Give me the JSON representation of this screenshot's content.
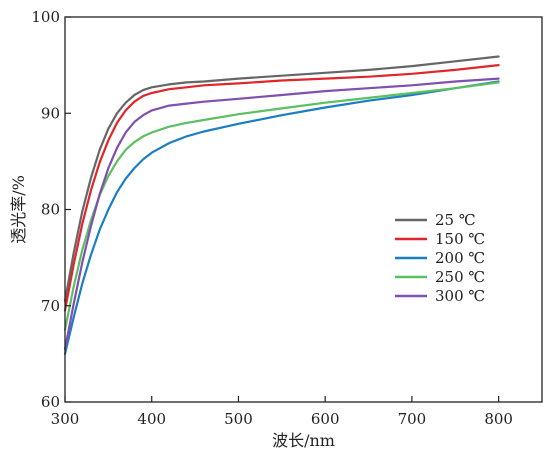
{
  "chart_data": {
    "type": "line",
    "title": "",
    "xlabel": "波长/nm",
    "ylabel": "透光率/%",
    "xlim": [
      300,
      850
    ],
    "ylim": [
      60,
      100
    ],
    "xticks": [
      300,
      400,
      500,
      600,
      700,
      800
    ],
    "yticks": [
      60,
      70,
      80,
      90,
      100
    ],
    "grid": false,
    "legend_position": "right-middle",
    "series": [
      {
        "name": "25 ℃",
        "color": "#666666",
        "x": [
          300,
          310,
          320,
          330,
          340,
          350,
          360,
          370,
          380,
          390,
          400,
          420,
          440,
          460,
          500,
          550,
          600,
          650,
          700,
          750,
          800
        ],
        "y": [
          70.5,
          75.5,
          79.8,
          83.3,
          86.2,
          88.4,
          90.0,
          91.1,
          91.9,
          92.4,
          92.7,
          93.0,
          93.2,
          93.3,
          93.6,
          93.9,
          94.2,
          94.5,
          94.9,
          95.4,
          95.9
        ]
      },
      {
        "name": "150 ℃",
        "color": "#e0262a",
        "x": [
          300,
          310,
          320,
          330,
          340,
          350,
          360,
          370,
          380,
          390,
          400,
          420,
          440,
          460,
          500,
          550,
          600,
          650,
          700,
          750,
          800
        ],
        "y": [
          69.5,
          74.3,
          78.5,
          82.0,
          84.9,
          87.2,
          89.0,
          90.3,
          91.2,
          91.8,
          92.1,
          92.5,
          92.7,
          92.9,
          93.1,
          93.4,
          93.6,
          93.8,
          94.1,
          94.5,
          95.0
        ]
      },
      {
        "name": "200 ℃",
        "color": "#1a7ec4",
        "x": [
          300,
          310,
          320,
          330,
          340,
          350,
          360,
          370,
          380,
          390,
          400,
          420,
          440,
          460,
          500,
          550,
          600,
          650,
          700,
          750,
          800
        ],
        "y": [
          65.0,
          68.8,
          72.3,
          75.3,
          77.9,
          80.0,
          81.8,
          83.2,
          84.3,
          85.2,
          85.9,
          86.9,
          87.6,
          88.1,
          88.9,
          89.8,
          90.6,
          91.3,
          91.9,
          92.6,
          93.3
        ]
      },
      {
        "name": "250 ℃",
        "color": "#5cbf60",
        "x": [
          300,
          310,
          320,
          330,
          340,
          350,
          360,
          370,
          380,
          390,
          400,
          420,
          440,
          460,
          500,
          550,
          600,
          650,
          700,
          750,
          800
        ],
        "y": [
          67.5,
          72.0,
          75.8,
          78.9,
          81.5,
          83.5,
          85.0,
          86.2,
          87.0,
          87.6,
          88.0,
          88.6,
          89.0,
          89.3,
          89.9,
          90.5,
          91.1,
          91.6,
          92.1,
          92.6,
          93.2
        ]
      },
      {
        "name": "300 ℃",
        "color": "#8050b0",
        "x": [
          300,
          310,
          320,
          330,
          340,
          350,
          360,
          370,
          380,
          390,
          400,
          420,
          440,
          460,
          500,
          550,
          600,
          650,
          700,
          750,
          800
        ],
        "y": [
          65.5,
          70.2,
          74.5,
          78.3,
          81.6,
          84.3,
          86.4,
          88.0,
          89.1,
          89.8,
          90.3,
          90.8,
          91.0,
          91.2,
          91.5,
          91.9,
          92.3,
          92.6,
          92.9,
          93.3,
          93.6
        ]
      }
    ]
  }
}
